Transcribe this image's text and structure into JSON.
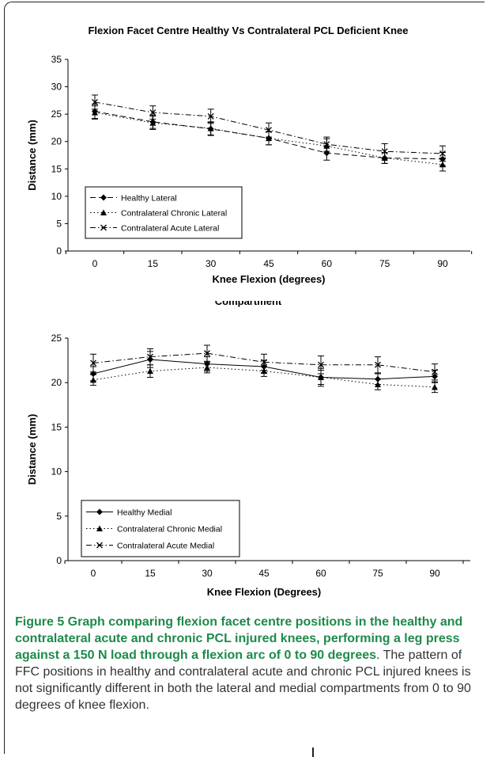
{
  "caption": {
    "lead": "Figure 5 Graph comparing flexion facet centre positions in the healthy and contralateral acute and chronic PCL injured knees, performing a leg press against a 150 N load through a flexion arc of 0 to 90 degrees",
    "body": ". The pattern of FFC positions in healthy and contralateral acute and chronic PCL injured knees is not significantly different in both the lateral and medial compartments from 0 to 90 degrees of knee flexion."
  },
  "chart_data": [
    {
      "type": "line",
      "title": "Flexion Facet Centre Healthy Vs Contralateral PCL Deficient Knee",
      "xlabel": "Knee Flexion (degrees)",
      "ylabel": "Distance (mm)",
      "categories": [
        "0",
        "15",
        "30",
        "45",
        "60",
        "75",
        "90"
      ],
      "ylim": [
        0,
        35
      ],
      "yticks": [
        0,
        5,
        10,
        15,
        20,
        25,
        30,
        35
      ],
      "legend_position": "bottom-left",
      "series": [
        {
          "name": "Healthy Lateral",
          "values": [
            25.5,
            23.6,
            22.3,
            20.6,
            17.9,
            17.0,
            16.8
          ],
          "errors": [
            1.3,
            1.2,
            1.2,
            1.2,
            1.3,
            1.0,
            1.2
          ],
          "marker": "diamond",
          "dash": "long-dash"
        },
        {
          "name": "Contralateral Chronic Lateral",
          "values": [
            25.3,
            23.4,
            22.4,
            20.6,
            19.2,
            17.0,
            15.8
          ],
          "errors": [
            1.2,
            1.2,
            1.2,
            1.2,
            1.3,
            1.0,
            1.2
          ],
          "marker": "triangle",
          "dash": "dotted"
        },
        {
          "name": "Contralateral Acute Lateral",
          "values": [
            27.2,
            25.3,
            24.6,
            22.1,
            19.5,
            18.2,
            17.8
          ],
          "errors": [
            1.3,
            1.2,
            1.3,
            1.3,
            1.3,
            1.4,
            1.4
          ],
          "marker": "x",
          "dash": "dash-dot"
        }
      ]
    },
    {
      "type": "line",
      "title": "Flexion Facet Centre Healthy Vs Contralateral PCL Deficient Knee Medial Compartment",
      "xlabel": "Knee Flexion (Degrees)",
      "ylabel": "Distance (mm)",
      "categories": [
        "0",
        "15",
        "30",
        "45",
        "60",
        "75",
        "90"
      ],
      "ylim": [
        0,
        25
      ],
      "yticks": [
        0,
        5,
        10,
        15,
        20,
        25
      ],
      "legend_position": "bottom-left",
      "series": [
        {
          "name": "Healthy Medial",
          "values": [
            21.0,
            22.6,
            22.1,
            21.8,
            20.6,
            20.4,
            20.7
          ],
          "errors": [
            0.8,
            0.9,
            0.8,
            0.7,
            1.0,
            0.6,
            0.7
          ],
          "marker": "diamond",
          "dash": "solid"
        },
        {
          "name": "Contralateral Chronic Medial",
          "values": [
            20.3,
            21.3,
            21.7,
            21.3,
            20.6,
            19.8,
            19.5
          ],
          "errors": [
            0.6,
            0.7,
            0.6,
            0.6,
            0.8,
            0.6,
            0.6
          ],
          "marker": "triangle",
          "dash": "dotted"
        },
        {
          "name": "Contralateral Acute Medial",
          "values": [
            22.2,
            22.9,
            23.3,
            22.3,
            22.0,
            22.0,
            21.2
          ],
          "errors": [
            1.0,
            0.9,
            0.9,
            0.9,
            1.0,
            0.9,
            0.9
          ],
          "marker": "x",
          "dash": "dash-dot"
        }
      ]
    }
  ]
}
